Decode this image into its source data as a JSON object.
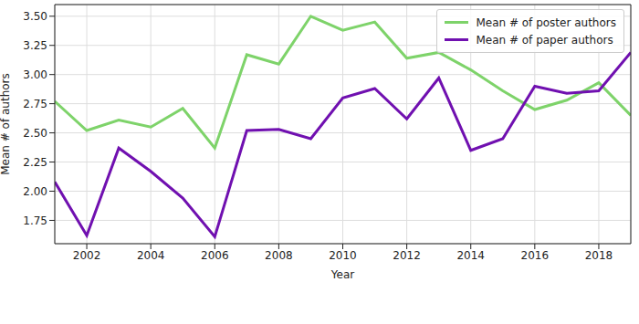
{
  "chart_data": {
    "type": "line",
    "x_label": "Year",
    "y_label": "Mean # of authors",
    "x": [
      2001,
      2002,
      2003,
      2004,
      2005,
      2006,
      2007,
      2008,
      2009,
      2010,
      2011,
      2012,
      2013,
      2014,
      2015,
      2016,
      2017,
      2018,
      2019
    ],
    "series": [
      {
        "name": "Mean # of poster authors",
        "color": "#7ed36a",
        "values": [
          2.77,
          2.52,
          2.61,
          2.55,
          2.71,
          2.37,
          3.17,
          3.09,
          3.5,
          3.38,
          3.45,
          3.14,
          3.19,
          3.04,
          2.86,
          2.7,
          2.78,
          2.93,
          2.65
        ]
      },
      {
        "name": "Mean # of paper authors",
        "color": "#7010b0",
        "values": [
          2.08,
          1.62,
          2.37,
          2.17,
          1.94,
          1.61,
          2.52,
          2.53,
          2.45,
          2.8,
          2.88,
          2.62,
          2.97,
          2.35,
          2.45,
          2.9,
          2.84,
          2.86,
          3.19
        ]
      }
    ],
    "xlim": [
      2001,
      2019
    ],
    "xticks": [
      2002,
      2004,
      2006,
      2008,
      2010,
      2012,
      2014,
      2016,
      2018
    ],
    "ylim": [
      1.55,
      3.6
    ],
    "yticks": [
      1.75,
      {
        "value": 2,
        "label": "2.00"
      },
      2.25,
      {
        "value": 2.5,
        "label": "2.50"
      },
      2.75,
      {
        "value": 3,
        "label": "3.00"
      },
      3.25,
      {
        "value": 3.5,
        "label": "3.50"
      }
    ],
    "grid": true,
    "legend": "upper right"
  }
}
